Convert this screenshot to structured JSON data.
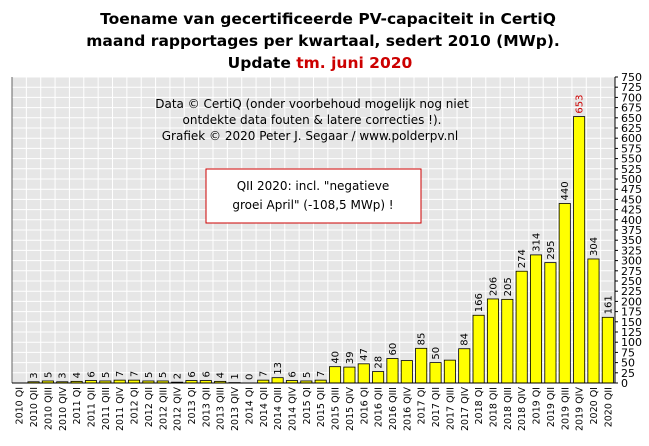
{
  "title": {
    "line1": "Toename van gecertificeerde PV-capaciteit  in CertiQ",
    "line2": "maand rapportages per kwartaal, sedert 2010 (MWp).",
    "line3_prefix": "Update",
    "line3_highlight": "tm. juni 2020"
  },
  "credits": {
    "line1": "Data © CertiQ (onder voorbehoud mogelijk  nog niet",
    "line2": "ontdekte data fouten & latere correcties !).",
    "line3": "Grafiek  © 2020 Peter J. Segaar / www.polderpv.nl"
  },
  "note": {
    "line1": "QII 2020: incl. \"negatieve",
    "line2": "groei April\"  (-108,5 MWp) !"
  },
  "colors": {
    "plot_bg": "#e6e6e6",
    "bar_fill": "#ffff00",
    "bar_stroke": "#000000",
    "grid": "#ffffff",
    "highlight": "#cc0000",
    "note_border": "#cc0000"
  },
  "chart_data": {
    "type": "bar",
    "categories": [
      "2010 QI",
      "2010 QII",
      "2010 QIII",
      "2010 QIV",
      "2011 QI",
      "2011 QII",
      "2011 QIII",
      "2011 QIV",
      "2012 QI",
      "2012 QII",
      "2012 QIII",
      "2012 QIV",
      "2013 QI",
      "2013 QII",
      "2013 QIII",
      "2013 QIV",
      "2014 QI",
      "2014 QII",
      "2014 QIII",
      "2014 QIV",
      "2015 QI",
      "2015 QII",
      "2015 QIII",
      "2015 QIV",
      "2016 QI",
      "2016 QII",
      "2016 QIII",
      "2016 QIV",
      "2017 QI",
      "2017 QII",
      "2017 QIII",
      "2017 QIV",
      "2018 QI",
      "2018 QII",
      "2018 QIII",
      "2018 QIV",
      "2019 QI",
      "2019 QII",
      "2019 QIII",
      "2019 QIV",
      "2020 QI",
      "2020 QII"
    ],
    "values": [
      null,
      3,
      5,
      3,
      4,
      6,
      5,
      7,
      7,
      5,
      5,
      2,
      6,
      6,
      4,
      1,
      0,
      7,
      13,
      6,
      5,
      7,
      40,
      39,
      47,
      28,
      60,
      55,
      85,
      50,
      56,
      84,
      166,
      206,
      205,
      274,
      314,
      295,
      440,
      653,
      304,
      161
    ],
    "labels": [
      "",
      "3",
      "5",
      "3",
      "4",
      "6",
      "5",
      "7",
      "7",
      "5",
      "5",
      "2",
      "6",
      "6",
      "4",
      "1",
      "0",
      "7",
      "13",
      "6",
      "5",
      "7",
      "40",
      "39",
      "47",
      "28",
      "60",
      "",
      "85",
      "50",
      "",
      "84",
      "166",
      "206",
      "205",
      "274",
      "314",
      "295",
      "440",
      "653",
      "304",
      "161"
    ],
    "highlight_index": 39,
    "ylim": [
      0,
      750
    ],
    "yticks": [
      0,
      25,
      50,
      75,
      100,
      125,
      150,
      175,
      200,
      225,
      250,
      275,
      300,
      325,
      350,
      375,
      400,
      425,
      450,
      475,
      500,
      525,
      550,
      575,
      600,
      625,
      650,
      675,
      700,
      725,
      750
    ],
    "y_axis_side": "right",
    "grid": true
  }
}
